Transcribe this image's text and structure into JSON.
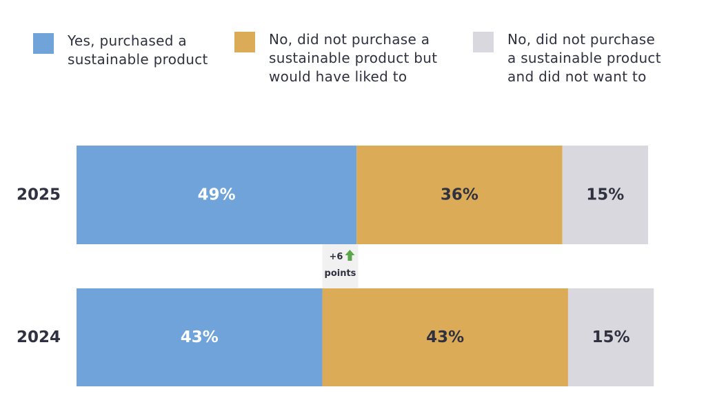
{
  "legend": [
    {
      "label": "Yes, purchased a\nsustainable product",
      "color": "#6fa3da"
    },
    {
      "label": "No, did not purchase a\nsustainable product but\nwould have liked to",
      "color": "#dcab58"
    },
    {
      "label": "No, did not purchase\na sustainable product\nand did not want to",
      "color": "#d9d8de"
    }
  ],
  "chart_data": {
    "type": "bar",
    "orientation": "horizontal",
    "stacked": true,
    "categories": [
      "2025",
      "2024"
    ],
    "series": [
      {
        "name": "Yes, purchased a sustainable product",
        "values": [
          49,
          43
        ],
        "labels": [
          "49%",
          "43%"
        ],
        "color": "#6fa3da",
        "label_color": "#ffffff"
      },
      {
        "name": "No, did not purchase a sustainable product but would have liked to",
        "values": [
          36,
          43
        ],
        "labels": [
          "36%",
          "43%"
        ],
        "color": "#dcab58",
        "label_color": "#2f3140"
      },
      {
        "name": "No, did not purchase a sustainable product and did not want to",
        "values": [
          15,
          15
        ],
        "labels": [
          "15%",
          "15%"
        ],
        "color": "#d9d8de",
        "label_color": "#2f3140"
      }
    ],
    "xlim": [
      0,
      100
    ],
    "annotation": {
      "line1": "+6",
      "line2": "points",
      "arrow_color": "#5aa64a",
      "box_color": "#f1f1f2"
    }
  }
}
